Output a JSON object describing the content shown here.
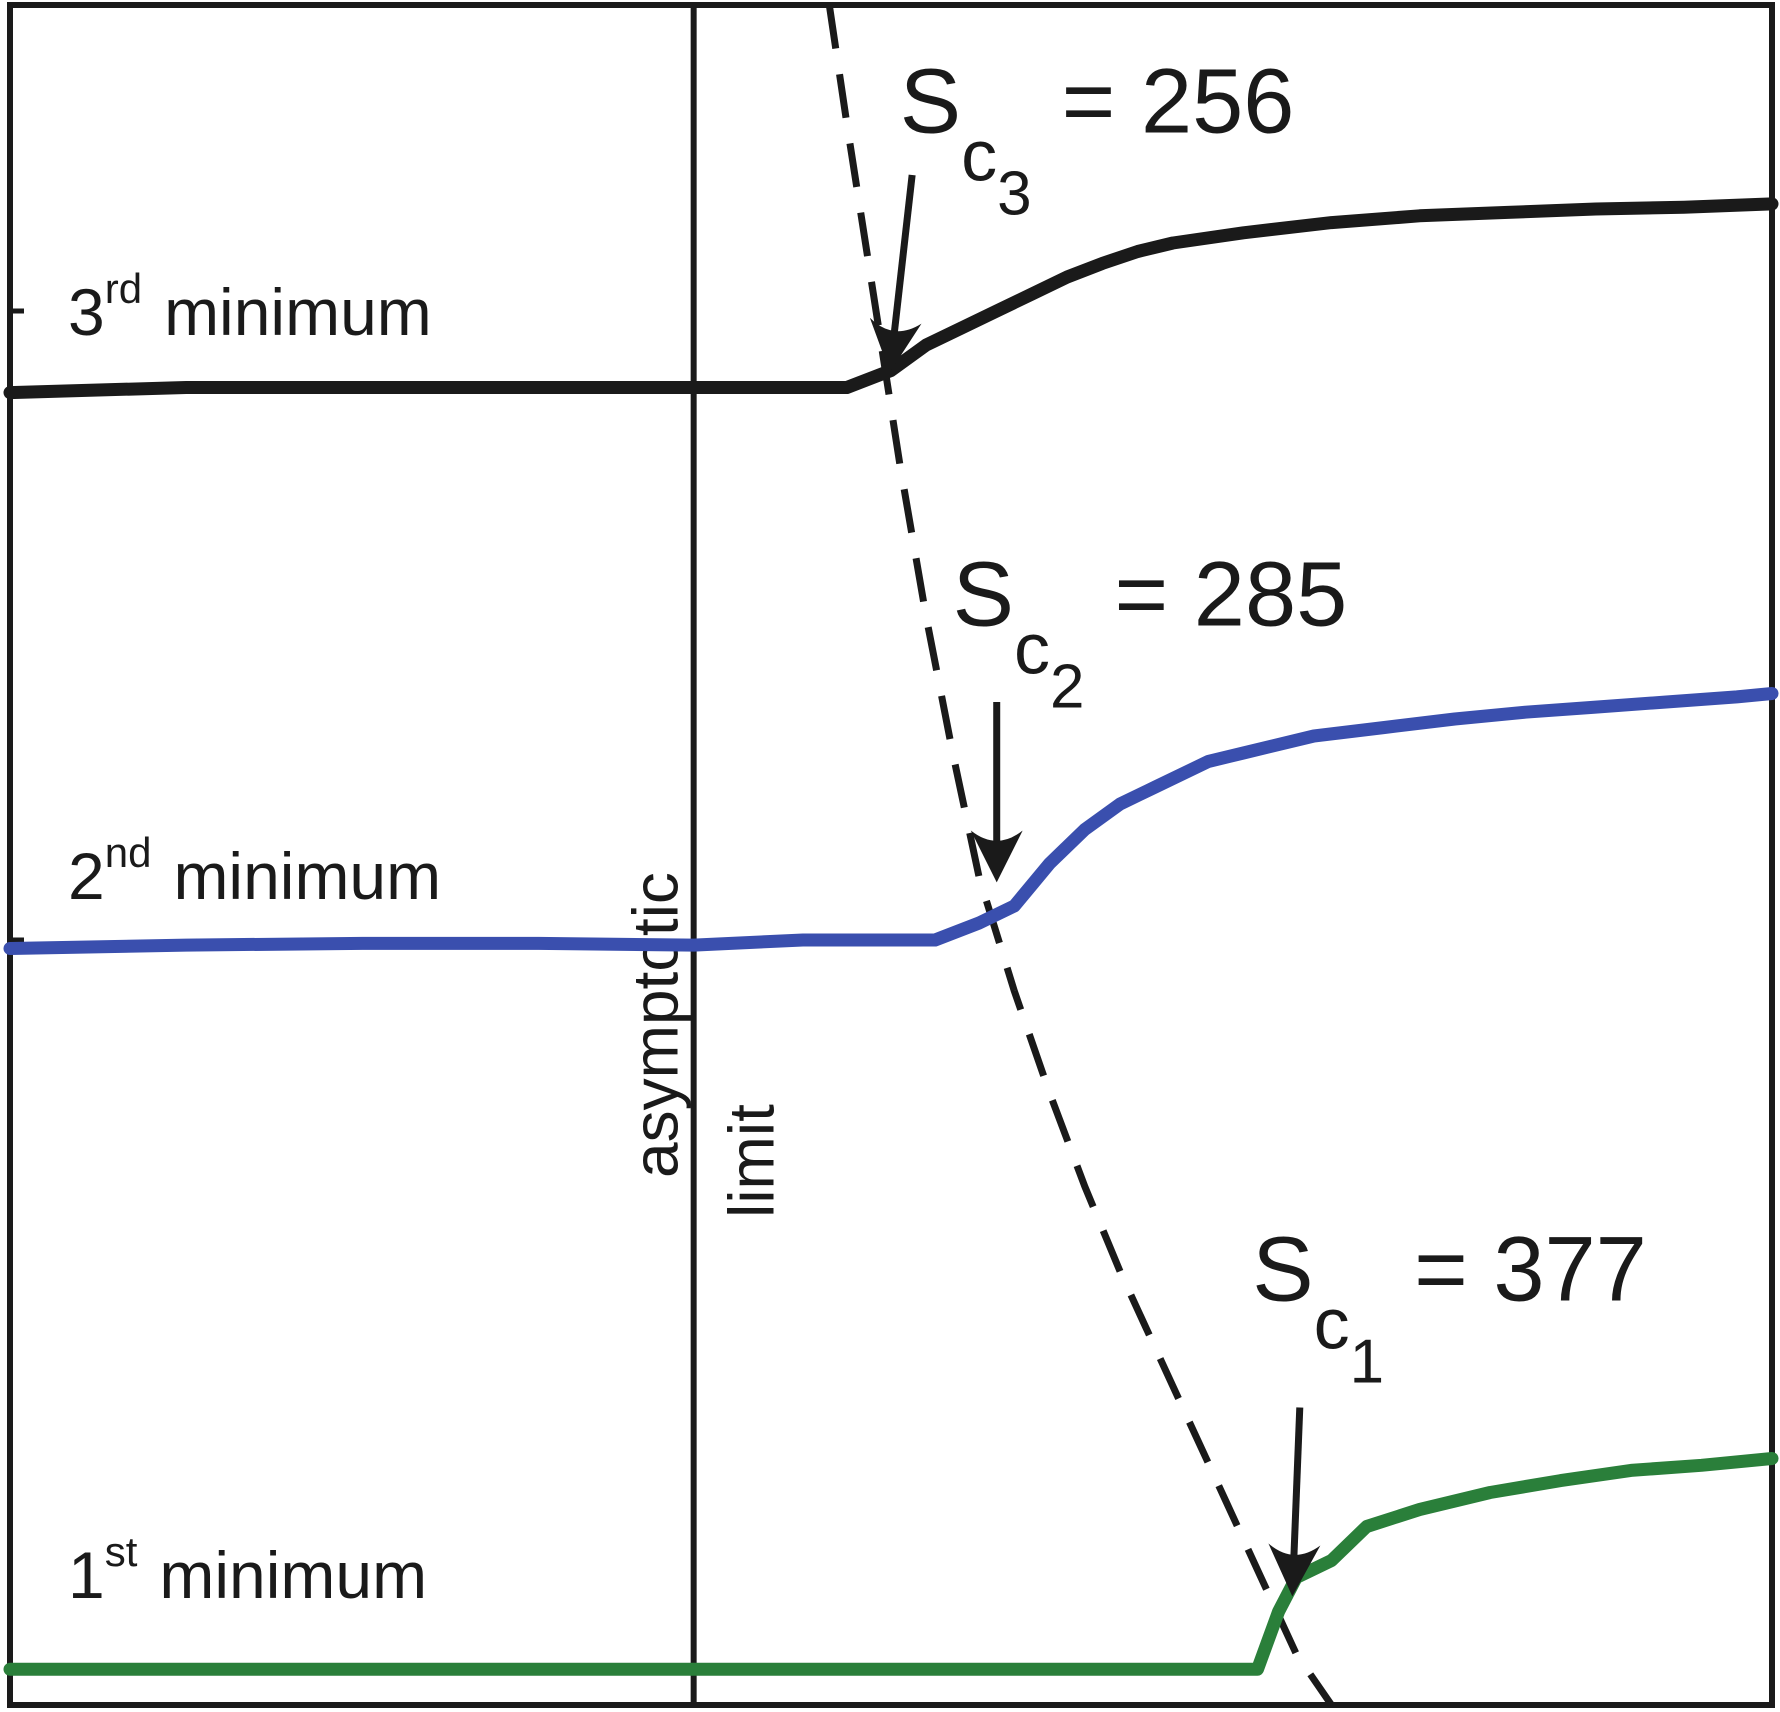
{
  "chart_data": {
    "type": "line",
    "title": "",
    "xlabel": "",
    "ylabel": "",
    "grid": false,
    "legend": "none",
    "x_range": [
      0,
      100
    ],
    "y_range": [
      0,
      100
    ],
    "series": [
      {
        "key": "first",
        "color": "#2a7f3a",
        "x": [
          0,
          10,
          20,
          30,
          38.8,
          45,
          55,
          70.8,
          72,
          73,
          75,
          76,
          77,
          80,
          84,
          88,
          92,
          96,
          100
        ],
        "y": [
          2.1,
          2.1,
          2.1,
          2.1,
          2.1,
          2.1,
          2.1,
          2.1,
          5.5,
          7.5,
          8.5,
          9.5,
          10.5,
          11.5,
          12.5,
          13.2,
          13.8,
          14.1,
          14.5
        ]
      },
      {
        "key": "second",
        "color": "#3a4fae",
        "x": [
          0,
          10,
          20,
          30,
          38.8,
          45,
          52.5,
          55,
          57,
          59,
          61,
          63,
          65,
          68,
          70,
          74,
          78,
          82,
          86,
          90,
          94,
          98,
          100
        ],
        "y": [
          44.5,
          44.7,
          44.8,
          44.8,
          44.7,
          45,
          45,
          46,
          47,
          49.5,
          51.5,
          53,
          54,
          55.5,
          56,
          57,
          57.5,
          58,
          58.4,
          58.7,
          59,
          59.3,
          59.5
        ]
      },
      {
        "key": "third",
        "color": "#1a1a1a",
        "x": [
          0,
          10,
          20,
          30,
          38.8,
          47.5,
          50,
          52,
          54,
          56,
          58,
          60,
          62,
          64,
          66,
          70,
          75,
          80,
          85,
          90,
          95,
          100
        ],
        "y": [
          77.2,
          77.5,
          77.5,
          77.5,
          77.5,
          77.5,
          78.5,
          80,
          81,
          82,
          83,
          84,
          84.8,
          85.5,
          86,
          86.6,
          87.2,
          87.6,
          87.8,
          88,
          88.1,
          88.3
        ]
      }
    ],
    "boundary": {
      "x": [
        46.5,
        47.5,
        49,
        50.5,
        52,
        53.5,
        55,
        57,
        59,
        61,
        63,
        65,
        67,
        69,
        71,
        73,
        75
      ],
      "y": [
        100,
        93,
        83,
        73,
        64,
        56,
        48.7,
        42,
        36,
        30.5,
        25.5,
        21,
        16.5,
        12,
        7.5,
        3,
        0
      ]
    },
    "asymptotic_limit_x": 38.8,
    "labels": {
      "asymptotic_limit_line1": "asymptotic",
      "asymptotic_limit_line2": "limit"
    },
    "minima": [
      {
        "key": "third",
        "num": "3",
        "sup": "rd",
        "word": "minimum",
        "y": 80.6
      },
      {
        "key": "second",
        "num": "2",
        "sup": "nd",
        "word": "minimum",
        "y": 47.4
      },
      {
        "key": "first",
        "num": "1",
        "sup": "st",
        "word": "minimum",
        "y": 6.3
      }
    ],
    "annotations": [
      {
        "key": "third",
        "sym": "S",
        "sub": "c",
        "subsub": "3",
        "eq": "= 256",
        "x": 50.5,
        "y": 92.5,
        "arrow_from": [
          51.2,
          90
        ],
        "arrow_to": [
          50.0,
          79
        ]
      },
      {
        "key": "second",
        "sym": "S",
        "sub": "c",
        "subsub": "2",
        "eq": "= 285",
        "x": 53.5,
        "y": 63.5,
        "arrow_from": [
          56.0,
          59
        ],
        "arrow_to": [
          56.0,
          49
        ]
      },
      {
        "key": "first",
        "sym": "S",
        "sub": "c",
        "subsub": "1",
        "eq": "= 377",
        "x": 70.5,
        "y": 23.8,
        "arrow_from": [
          73.2,
          17.5
        ],
        "arrow_to": [
          72.8,
          7
        ]
      }
    ],
    "yticks": [
      2.0,
      45.0,
      82.0
    ]
  }
}
